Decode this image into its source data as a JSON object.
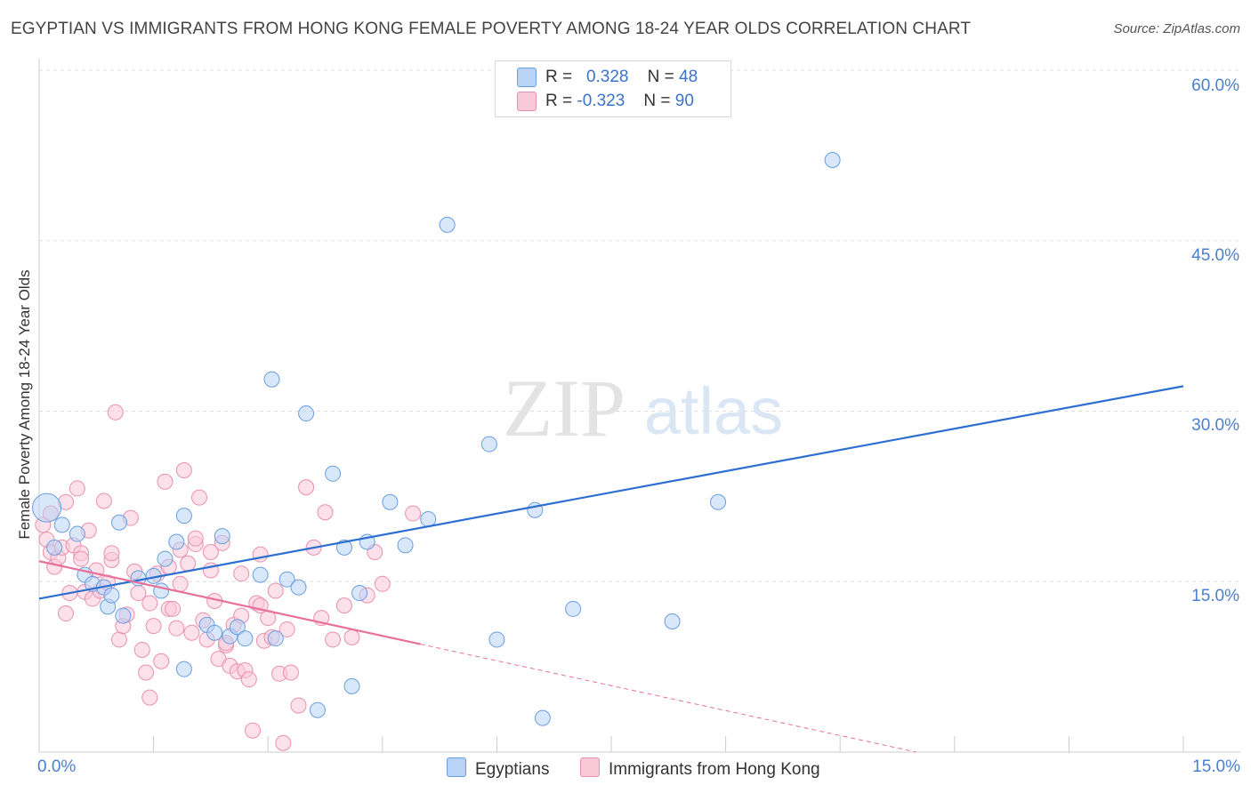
{
  "title": "EGYPTIAN VS IMMIGRANTS FROM HONG KONG FEMALE POVERTY AMONG 18-24 YEAR OLDS CORRELATION CHART",
  "source": "Source: ZipAtlas.com",
  "watermark": {
    "zip": "ZIP",
    "atlas": "atlas"
  },
  "legend": {
    "blue": {
      "r_label": "R =",
      "r_value": "0.328",
      "n_label": "N =",
      "n_value": "48"
    },
    "pink": {
      "r_label": "R =",
      "r_value": "-0.323",
      "n_label": "N =",
      "n_value": "90"
    }
  },
  "bottom_legend": {
    "blue_label": "Egyptians",
    "pink_label": "Immigrants from Hong Kong"
  },
  "colors": {
    "blue": "#6a9ee0",
    "blue_fill": "#b8d3f5",
    "blue_line": "#2d6fd0",
    "pink": "#ea8fb0",
    "pink_fill": "#f9c9d8",
    "pink_line": "#e8709a",
    "axis_text": "#4a7fd0"
  },
  "chart_data": {
    "type": "scatter",
    "title": "EGYPTIAN VS IMMIGRANTS FROM HONG KONG FEMALE POVERTY AMONG 18-24 YEAR OLDS CORRELATION CHART",
    "xlabel": "",
    "ylabel": "Female Poverty Among 18-24 Year Olds",
    "xlim": [
      0,
      15
    ],
    "ylim": [
      0,
      60
    ],
    "x_tick_labels": [
      "0.0%",
      "15.0%"
    ],
    "y_ticks": [
      15,
      30,
      45,
      60
    ],
    "y_tick_labels": [
      "15.0%",
      "30.0%",
      "45.0%",
      "60.0%"
    ],
    "grid": true,
    "legend_position": "top-center",
    "series": [
      {
        "name": "Egyptians",
        "r": 0.328,
        "n": 48,
        "trend": {
          "x0": 0.0,
          "y0": 13.5,
          "x1": 15.0,
          "y1": 32.2,
          "dashed_to": null
        },
        "points": [
          [
            0.1,
            21.5
          ],
          [
            0.3,
            20.0
          ],
          [
            0.5,
            19.2
          ],
          [
            0.6,
            15.6
          ],
          [
            0.7,
            14.8
          ],
          [
            0.85,
            14.5
          ],
          [
            0.9,
            12.8
          ],
          [
            1.05,
            20.2
          ],
          [
            1.1,
            12.0
          ],
          [
            1.3,
            15.3
          ],
          [
            1.5,
            15.5
          ],
          [
            1.6,
            14.2
          ],
          [
            1.65,
            17.0
          ],
          [
            1.8,
            18.5
          ],
          [
            1.9,
            20.8
          ],
          [
            2.2,
            11.2
          ],
          [
            2.3,
            10.5
          ],
          [
            2.4,
            19.0
          ],
          [
            2.5,
            10.2
          ],
          [
            2.6,
            11.0
          ],
          [
            2.7,
            10.0
          ],
          [
            2.9,
            15.6
          ],
          [
            3.05,
            32.8
          ],
          [
            3.25,
            15.2
          ],
          [
            3.1,
            10.0
          ],
          [
            3.4,
            14.5
          ],
          [
            3.5,
            29.8
          ],
          [
            3.65,
            3.7
          ],
          [
            3.85,
            24.5
          ],
          [
            4.0,
            18.0
          ],
          [
            4.1,
            5.8
          ],
          [
            4.2,
            14.0
          ],
          [
            4.3,
            18.5
          ],
          [
            4.6,
            22.0
          ],
          [
            4.8,
            18.2
          ],
          [
            5.1,
            20.5
          ],
          [
            5.35,
            46.4
          ],
          [
            5.9,
            27.1
          ],
          [
            6.0,
            9.9
          ],
          [
            6.5,
            21.3
          ],
          [
            6.6,
            3.0
          ],
          [
            7.0,
            12.6
          ],
          [
            8.3,
            11.5
          ],
          [
            8.9,
            22.0
          ],
          [
            10.4,
            52.1
          ],
          [
            0.2,
            18.0
          ],
          [
            1.9,
            7.3
          ],
          [
            0.95,
            13.8
          ]
        ]
      },
      {
        "name": "Immigrants from Hong Kong",
        "r": -0.323,
        "n": 90,
        "trend": {
          "x0": 0.0,
          "y0": 16.8,
          "x1": 5.0,
          "y1": 9.5,
          "dashed_to": {
            "x": 11.5,
            "y": 0.0
          }
        },
        "points": [
          [
            0.05,
            20.0
          ],
          [
            0.1,
            18.7
          ],
          [
            0.15,
            17.6
          ],
          [
            0.2,
            16.3
          ],
          [
            0.25,
            17.1
          ],
          [
            0.3,
            18.0
          ],
          [
            0.35,
            22.0
          ],
          [
            0.4,
            14.0
          ],
          [
            0.45,
            18.2
          ],
          [
            0.5,
            23.2
          ],
          [
            0.55,
            17.5
          ],
          [
            0.6,
            14.1
          ],
          [
            0.65,
            19.5
          ],
          [
            0.7,
            13.5
          ],
          [
            0.75,
            16.0
          ],
          [
            0.8,
            14.2
          ],
          [
            0.85,
            22.1
          ],
          [
            0.9,
            14.9
          ],
          [
            0.95,
            16.9
          ],
          [
            1.0,
            29.9
          ],
          [
            1.05,
            9.9
          ],
          [
            1.1,
            11.1
          ],
          [
            1.15,
            12.1
          ],
          [
            1.2,
            20.6
          ],
          [
            1.3,
            14.0
          ],
          [
            1.35,
            9.0
          ],
          [
            1.4,
            7.0
          ],
          [
            1.45,
            4.8
          ],
          [
            1.5,
            11.1
          ],
          [
            1.55,
            15.7
          ],
          [
            1.6,
            8.0
          ],
          [
            1.65,
            23.8
          ],
          [
            1.7,
            12.6
          ],
          [
            1.75,
            12.6
          ],
          [
            1.8,
            10.9
          ],
          [
            1.85,
            17.8
          ],
          [
            1.9,
            24.8
          ],
          [
            1.95,
            16.6
          ],
          [
            2.0,
            10.5
          ],
          [
            2.05,
            18.3
          ],
          [
            2.1,
            22.4
          ],
          [
            2.15,
            11.6
          ],
          [
            2.2,
            9.9
          ],
          [
            2.25,
            17.6
          ],
          [
            2.3,
            13.3
          ],
          [
            2.35,
            8.2
          ],
          [
            2.4,
            18.4
          ],
          [
            2.45,
            9.4
          ],
          [
            2.5,
            7.6
          ],
          [
            2.55,
            11.2
          ],
          [
            2.6,
            7.1
          ],
          [
            2.65,
            15.7
          ],
          [
            2.7,
            7.2
          ],
          [
            2.75,
            6.4
          ],
          [
            2.8,
            1.9
          ],
          [
            2.85,
            13.1
          ],
          [
            2.9,
            17.4
          ],
          [
            2.95,
            9.8
          ],
          [
            3.0,
            11.8
          ],
          [
            3.05,
            10.1
          ],
          [
            3.1,
            14.2
          ],
          [
            3.15,
            6.9
          ],
          [
            3.2,
            0.8
          ],
          [
            3.3,
            7.0
          ],
          [
            3.4,
            4.1
          ],
          [
            3.5,
            23.3
          ],
          [
            3.6,
            18.0
          ],
          [
            3.7,
            11.8
          ],
          [
            3.75,
            21.1
          ],
          [
            3.85,
            9.9
          ],
          [
            4.0,
            12.9
          ],
          [
            4.1,
            10.1
          ],
          [
            4.3,
            13.8
          ],
          [
            4.4,
            17.6
          ],
          [
            4.5,
            14.8
          ],
          [
            4.9,
            21.0
          ],
          [
            0.15,
            21.0
          ],
          [
            0.35,
            12.2
          ],
          [
            0.55,
            17.0
          ],
          [
            0.95,
            17.5
          ],
          [
            1.25,
            15.9
          ],
          [
            1.45,
            13.1
          ],
          [
            1.7,
            16.3
          ],
          [
            1.85,
            14.8
          ],
          [
            2.05,
            18.8
          ],
          [
            2.25,
            16.0
          ],
          [
            2.45,
            9.6
          ],
          [
            2.65,
            12.0
          ],
          [
            2.9,
            12.9
          ],
          [
            3.25,
            10.8
          ]
        ]
      }
    ]
  }
}
